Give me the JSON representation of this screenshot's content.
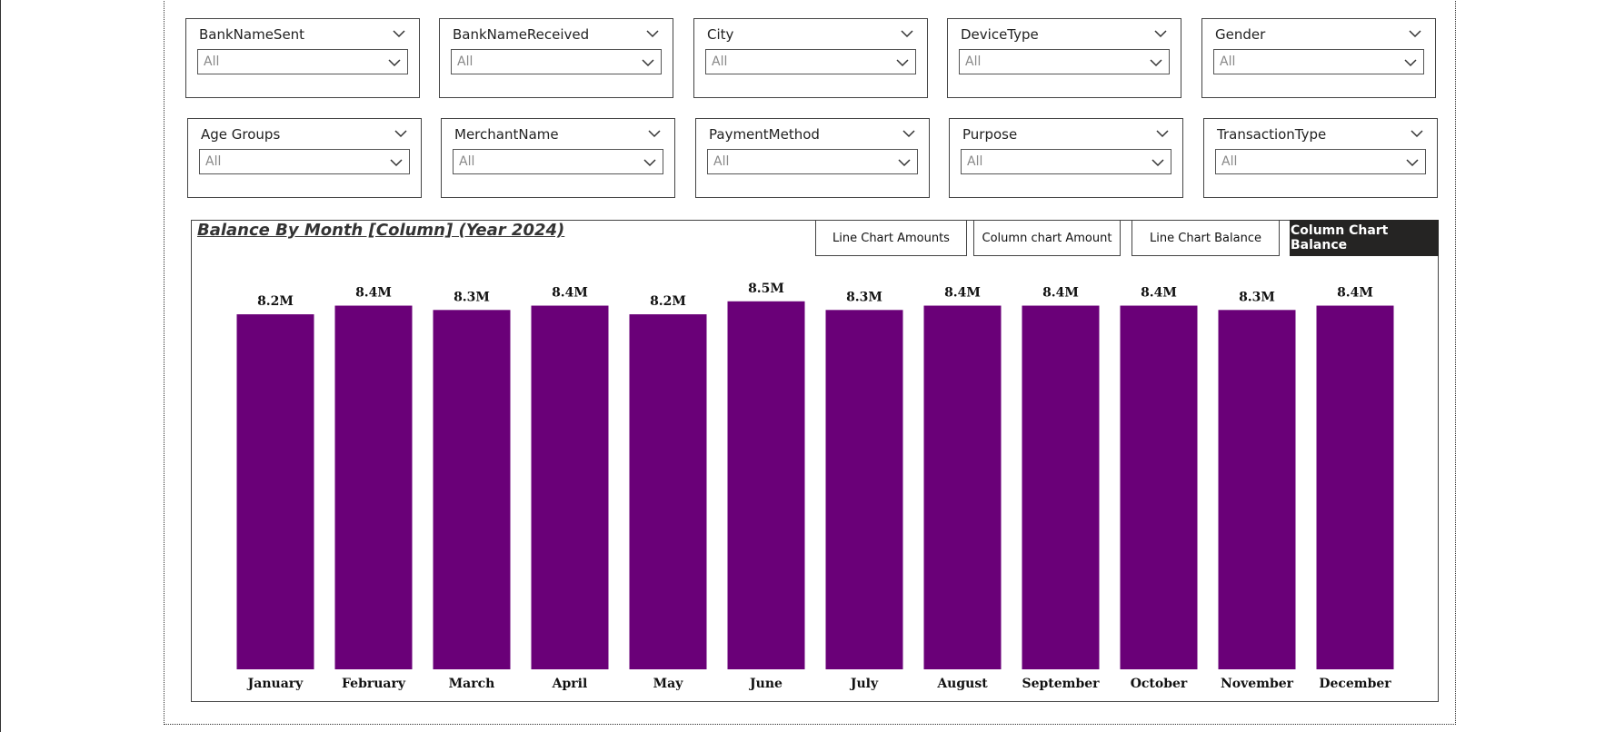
{
  "slicers": [
    {
      "title": "BankNameSent",
      "value": "All"
    },
    {
      "title": "BankNameReceived",
      "value": "All"
    },
    {
      "title": "City",
      "value": "All"
    },
    {
      "title": "DeviceType",
      "value": "All"
    },
    {
      "title": "Gender",
      "value": "All"
    },
    {
      "title": "Age Groups",
      "value": "All"
    },
    {
      "title": "MerchantName",
      "value": "All"
    },
    {
      "title": "PaymentMethod",
      "value": "All"
    },
    {
      "title": "Purpose",
      "value": "All"
    },
    {
      "title": "TransactionType",
      "value": "All"
    }
  ],
  "nav_buttons": [
    {
      "label": "Line Chart Amounts",
      "active": false
    },
    {
      "label": "Column chart Amount",
      "active": false
    },
    {
      "label": "Line Chart Balance",
      "active": false
    },
    {
      "label": "Column Chart Balance",
      "active": true
    }
  ],
  "colors": {
    "bar": "#6a0078",
    "active_button": "#252423"
  },
  "chart_data": {
    "type": "bar",
    "title": "Balance By Month [Column] (Year 2024)",
    "categories": [
      "January",
      "February",
      "March",
      "April",
      "May",
      "June",
      "July",
      "August",
      "September",
      "October",
      "November",
      "December"
    ],
    "values": [
      8.2,
      8.4,
      8.3,
      8.4,
      8.2,
      8.5,
      8.3,
      8.4,
      8.4,
      8.4,
      8.3,
      8.4
    ],
    "value_labels": [
      "8.2M",
      "8.4M",
      "8.3M",
      "8.4M",
      "8.2M",
      "8.5M",
      "8.3M",
      "8.4M",
      "8.4M",
      "8.4M",
      "8.3M",
      "8.4M"
    ],
    "unit": "M",
    "ylim": [
      0,
      8.6
    ],
    "grid": false,
    "legend": "none"
  }
}
